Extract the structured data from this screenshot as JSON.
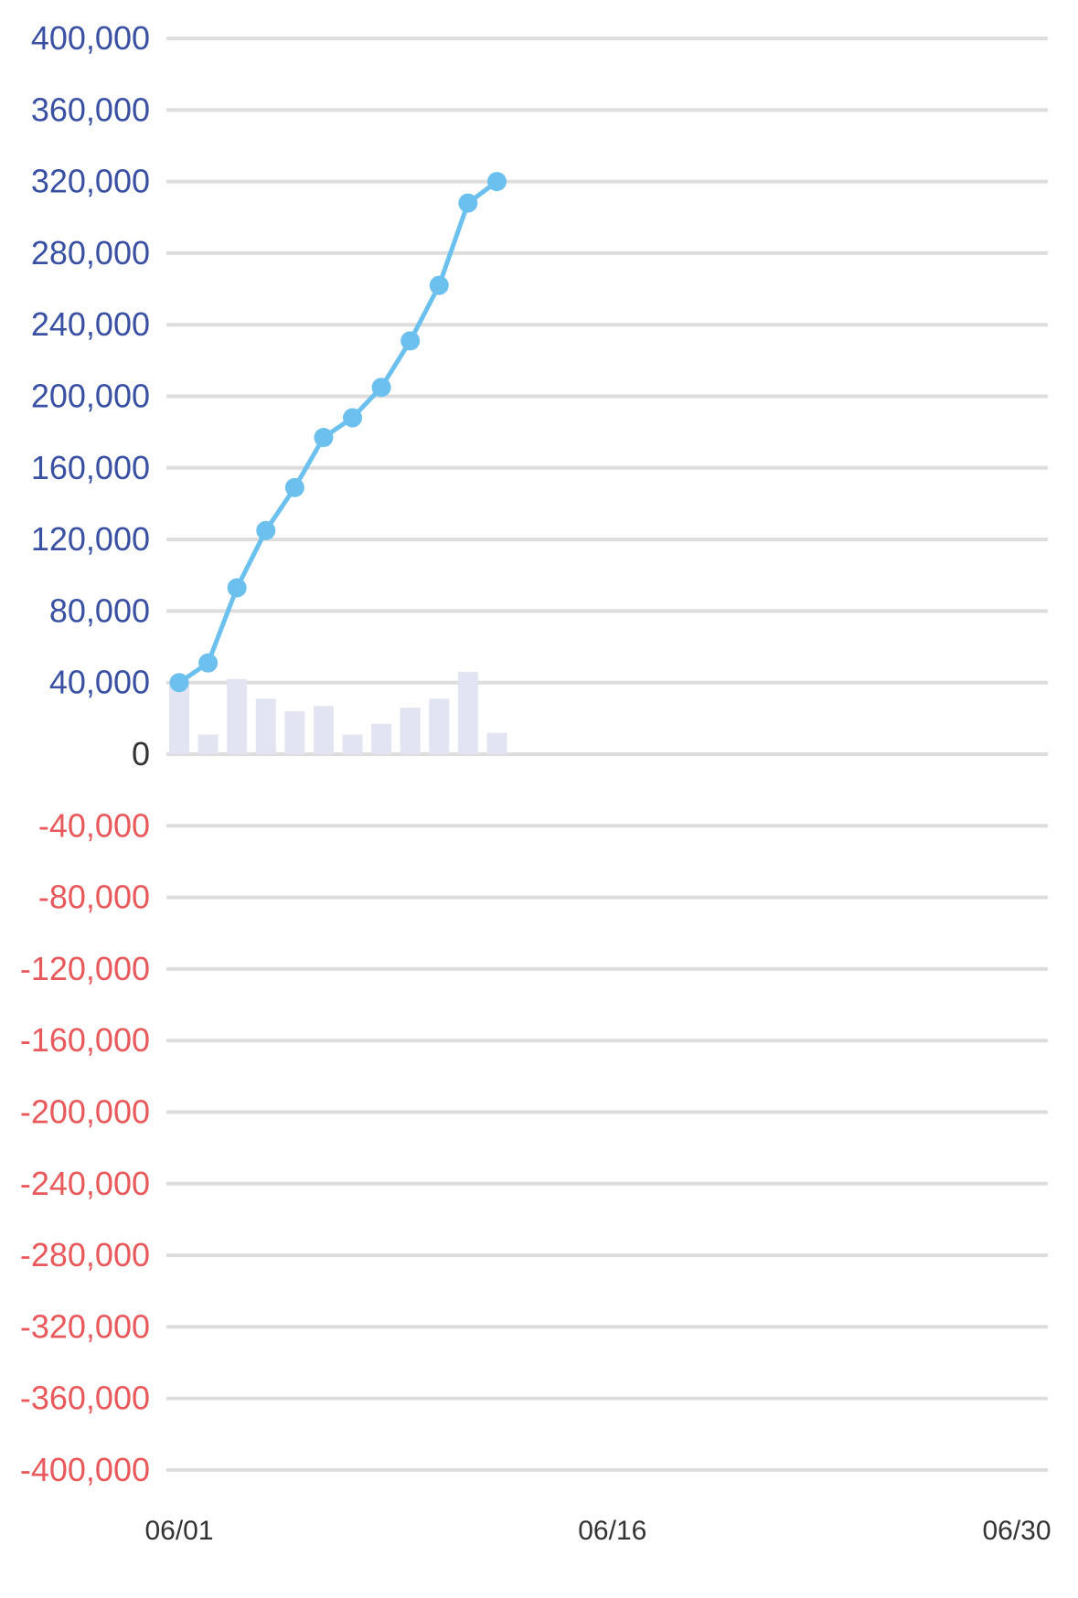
{
  "colors": {
    "positive_tick": "#3a51a3",
    "zero_tick": "#333333",
    "negative_tick": "#e8595c",
    "line": "#6bc0ee",
    "bar": "#e2e5f1",
    "grid": "#dddddd"
  },
  "chart_data": {
    "type": "line",
    "title": "",
    "xlabel": "",
    "ylabel": "",
    "ylim": [
      -400000,
      400000
    ],
    "y_ticks": [
      400000,
      360000,
      320000,
      280000,
      240000,
      200000,
      160000,
      120000,
      80000,
      40000,
      0,
      -40000,
      -80000,
      -120000,
      -160000,
      -200000,
      -240000,
      -280000,
      -320000,
      -360000,
      -400000
    ],
    "y_tick_labels": [
      "400,000",
      "360,000",
      "320,000",
      "280,000",
      "240,000",
      "200,000",
      "160,000",
      "120,000",
      "80,000",
      "40,000",
      "0",
      "-40,000",
      "-80,000",
      "-120,000",
      "-160,000",
      "-200,000",
      "-240,000",
      "-280,000",
      "-320,000",
      "-360,000",
      "-400,000"
    ],
    "x_tick_labels": [
      "06/01",
      "06/16",
      "06/30"
    ],
    "xlim": [
      "06/01",
      "06/30"
    ],
    "days": [
      "06/01",
      "06/02",
      "06/03",
      "06/04",
      "06/05",
      "06/06",
      "06/07",
      "06/08",
      "06/09",
      "06/10",
      "06/11",
      "06/12"
    ],
    "series": [
      {
        "type": "line",
        "values": [
          40000,
          51000,
          93000,
          125000,
          149000,
          177000,
          188000,
          205000,
          231000,
          262000,
          308000,
          320000
        ]
      },
      {
        "type": "bar",
        "values": [
          40000,
          11000,
          42000,
          31000,
          24000,
          27000,
          11000,
          17000,
          26000,
          31000,
          46000,
          12000
        ]
      }
    ],
    "grid": true,
    "legend": "none"
  }
}
